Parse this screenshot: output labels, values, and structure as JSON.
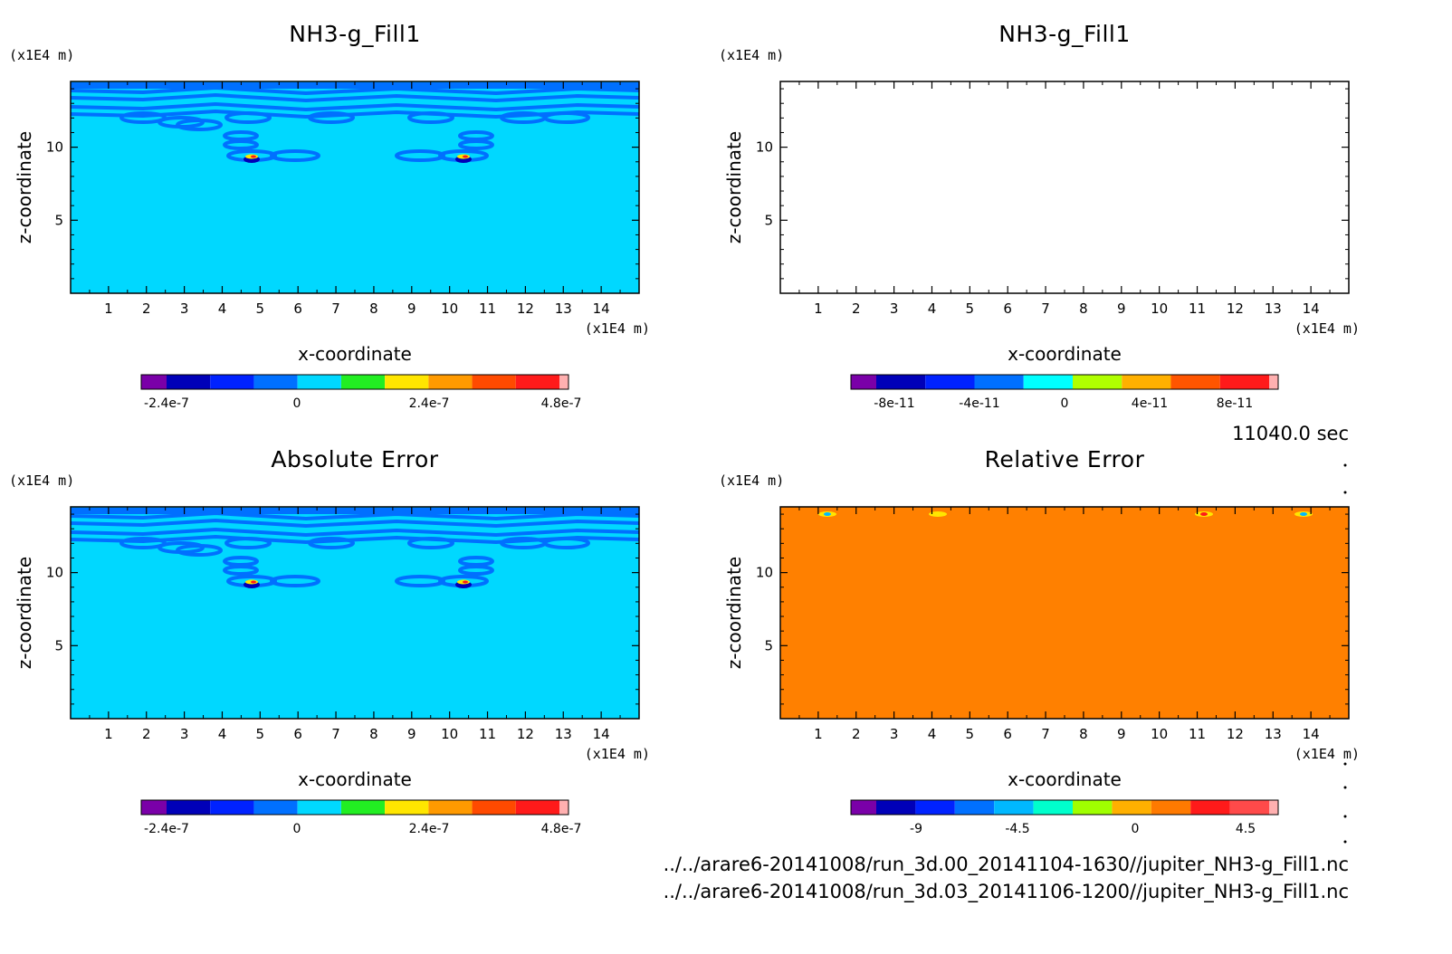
{
  "time_label": "11040.0 sec",
  "file_paths": [
    "../../arare6-20141008/run_3d.00_20141104-1630//jupiter_NH3-g_Fill1.nc",
    "../../arare6-20141008/run_3d.03_20141106-1200//jupiter_NH3-g_Fill1.nc"
  ],
  "chart_data": [
    {
      "type": "heatmap",
      "title": "NH3-g_Fill1",
      "xlabel": "x-coordinate",
      "ylabel": "z-coordinate",
      "x_unit": "(x1E4 m)",
      "y_unit": "(x1E4 m)",
      "xlim": [
        0,
        15
      ],
      "ylim": [
        0,
        14.5
      ],
      "xticks": [
        1,
        2,
        3,
        4,
        5,
        6,
        7,
        8,
        9,
        10,
        11,
        12,
        13,
        14
      ],
      "yticks": [
        5,
        10
      ],
      "fill_color": "#00d8ff",
      "field_desc_visible": true,
      "colorbar": {
        "colors": [
          "#7a00a8",
          "#0000b8",
          "#0022ff",
          "#0070ff",
          "#00d8ff",
          "#22ee22",
          "#ffe600",
          "#ff9a00",
          "#ff4a00",
          "#ff1a1a",
          "#ffb0b0"
        ],
        "tick_labels": [
          "-2.4e-7",
          "0",
          "2.4e-7",
          "4.8e-7"
        ]
      }
    },
    {
      "type": "heatmap",
      "title": "NH3-g_Fill1",
      "xlabel": "x-coordinate",
      "ylabel": "z-coordinate",
      "x_unit": "(x1E4 m)",
      "y_unit": "(x1E4 m)",
      "xlim": [
        0,
        15
      ],
      "ylim": [
        0,
        14.5
      ],
      "xticks": [
        1,
        2,
        3,
        4,
        5,
        6,
        7,
        8,
        9,
        10,
        11,
        12,
        13,
        14
      ],
      "yticks": [
        5,
        10
      ],
      "fill_color": "#ffffff",
      "field_desc_visible": false,
      "colorbar": {
        "colors": [
          "#7a00a8",
          "#0000b8",
          "#0022ff",
          "#0070ff",
          "#00ffff",
          "#b0ff00",
          "#ffb000",
          "#ff5500",
          "#ff1a1a",
          "#ffb0b0"
        ],
        "tick_labels": [
          "-8e-11",
          "-4e-11",
          "0",
          "4e-11",
          "8e-11"
        ]
      }
    },
    {
      "type": "heatmap",
      "title": "Absolute Error",
      "xlabel": "x-coordinate",
      "ylabel": "z-coordinate",
      "x_unit": "(x1E4 m)",
      "y_unit": "(x1E4 m)",
      "xlim": [
        0,
        15
      ],
      "ylim": [
        0,
        14.5
      ],
      "xticks": [
        1,
        2,
        3,
        4,
        5,
        6,
        7,
        8,
        9,
        10,
        11,
        12,
        13,
        14
      ],
      "yticks": [
        5,
        10
      ],
      "fill_color": "#00d8ff",
      "field_desc_visible": true,
      "colorbar": {
        "colors": [
          "#7a00a8",
          "#0000b8",
          "#0022ff",
          "#0070ff",
          "#00d8ff",
          "#22ee22",
          "#ffe600",
          "#ff9a00",
          "#ff4a00",
          "#ff1a1a",
          "#ffb0b0"
        ],
        "tick_labels": [
          "-2.4e-7",
          "0",
          "2.4e-7",
          "4.8e-7"
        ]
      }
    },
    {
      "type": "heatmap",
      "title": "Relative Error",
      "xlabel": "x-coordinate",
      "ylabel": "z-coordinate",
      "x_unit": "(x1E4 m)",
      "y_unit": "(x1E4 m)",
      "xlim": [
        0,
        15
      ],
      "ylim": [
        0,
        14.5
      ],
      "xticks": [
        1,
        2,
        3,
        4,
        5,
        6,
        7,
        8,
        9,
        10,
        11,
        12,
        13,
        14
      ],
      "yticks": [
        5,
        10
      ],
      "fill_color": "#ff8000",
      "field_desc_visible": false,
      "colorbar": {
        "colors": [
          "#7a00a8",
          "#0000b8",
          "#0022ff",
          "#0070ff",
          "#00b8ff",
          "#00ffcc",
          "#a0ff00",
          "#ffb000",
          "#ff7a00",
          "#ff1a1a",
          "#ff4a4a",
          "#ffb0b0"
        ],
        "tick_labels": [
          "-9",
          "-4.5",
          "0",
          "4.5"
        ]
      }
    }
  ]
}
